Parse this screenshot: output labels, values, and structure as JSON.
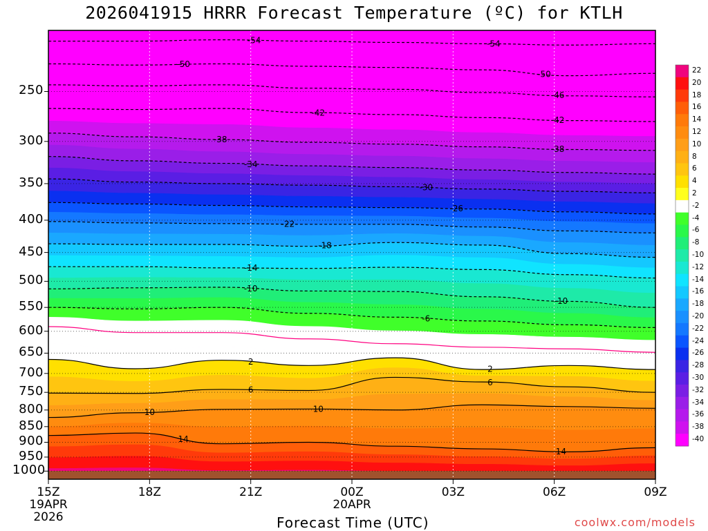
{
  "title": "2026041915 HRRR Forecast Temperature (ºC) for KTLH",
  "xlabel": "Forecast Time (UTC)",
  "credit": "coolwx.com/models",
  "chart_data": {
    "type": "contour-fill",
    "x_axis": {
      "ticks": [
        {
          "hour": 0,
          "label": "15Z",
          "sub": [
            "19APR",
            "2026"
          ]
        },
        {
          "hour": 3,
          "label": "18Z",
          "sub": []
        },
        {
          "hour": 6,
          "label": "21Z",
          "sub": []
        },
        {
          "hour": 9,
          "label": "00Z",
          "sub": [
            "20APR"
          ]
        },
        {
          "hour": 12,
          "label": "03Z",
          "sub": []
        },
        {
          "hour": 15,
          "label": "06Z",
          "sub": []
        },
        {
          "hour": 18,
          "label": "09Z",
          "sub": []
        }
      ],
      "range_hours": [
        0,
        18
      ]
    },
    "y_axis": {
      "scale": "log-pressure",
      "ticks": [
        250,
        300,
        350,
        400,
        450,
        500,
        550,
        600,
        650,
        700,
        750,
        800,
        850,
        900,
        950,
        1000
      ],
      "range_hPa": [
        200,
        1030
      ]
    },
    "colorbar": {
      "levels": [
        22,
        20,
        18,
        16,
        14,
        12,
        10,
        8,
        6,
        4,
        2,
        -2,
        -4,
        -6,
        -8,
        -10,
        -12,
        -14,
        -16,
        -18,
        -20,
        -22,
        -24,
        -26,
        -28,
        -30,
        -32,
        -34,
        -36,
        -38,
        -40
      ],
      "colors": [
        "#f0057e",
        "#ff1010",
        "#ff3a0a",
        "#ff5e08",
        "#ff7a0a",
        "#ff8c0f",
        "#ff9e18",
        "#ffb015",
        "#ffc510",
        "#ffe000",
        "#ffff1e",
        "#ffffff",
        "#40ff2a",
        "#2af84a",
        "#20ee78",
        "#1eeaa8",
        "#19e8d2",
        "#10e4ff",
        "#14c8ff",
        "#1aa8ff",
        "#1a90ff",
        "#1478ff",
        "#0a55ff",
        "#0a30f0",
        "#3a24e4",
        "#5a1ee4",
        "#7a1ee4",
        "#9a1ee8",
        "#b51aec",
        "#cf12ef",
        "#ff00ff"
      ]
    },
    "contour_levels": [
      {
        "temp": -54,
        "pressure": [
          208,
          208,
          207,
          208,
          209,
          210,
          211,
          210
        ],
        "labels": [
          {
            "hour": 6.1,
            "text": "-54"
          },
          {
            "hour": 13.2,
            "text": "-54"
          }
        ]
      },
      {
        "temp": -50,
        "pressure": [
          226,
          227,
          226,
          228,
          229,
          231,
          236,
          234
        ],
        "labels": [
          {
            "hour": 4,
            "text": "-50"
          },
          {
            "hour": 14.7,
            "text": "-50"
          }
        ]
      },
      {
        "temp": -46,
        "pressure": [
          244,
          245,
          244,
          247,
          248,
          251,
          254,
          255
        ],
        "labels": [
          {
            "hour": 15.1,
            "text": "-46"
          }
        ]
      },
      {
        "temp": -42,
        "pressure": [
          266,
          267,
          266,
          270,
          272,
          275,
          278,
          279
        ],
        "labels": [
          {
            "hour": 8,
            "text": "-42"
          },
          {
            "hour": 15.1,
            "text": "-42"
          }
        ]
      },
      {
        "temp": -38,
        "pressure": [
          291,
          295,
          298,
          301,
          303,
          306,
          309,
          310
        ],
        "labels": [
          {
            "hour": 5.1,
            "text": "-38"
          },
          {
            "hour": 15.1,
            "text": "-38"
          }
        ]
      },
      {
        "temp": -34,
        "pressure": [
          317,
          322,
          325,
          328,
          330,
          333,
          336,
          338
        ],
        "labels": [
          {
            "hour": 6,
            "text": "-34"
          }
        ]
      },
      {
        "temp": -30,
        "pressure": [
          344,
          348,
          350,
          352,
          354,
          357,
          360,
          362
        ],
        "labels": [
          {
            "hour": 11.2,
            "text": "-30"
          }
        ]
      },
      {
        "temp": -26,
        "pressure": [
          375,
          377,
          379,
          381,
          382,
          384,
          388,
          391
        ],
        "labels": [
          {
            "hour": 12.1,
            "text": "-26"
          }
        ]
      },
      {
        "temp": -22,
        "pressure": [
          402,
          404,
          405,
          406,
          406,
          410,
          416,
          419
        ],
        "labels": [
          {
            "hour": 7.1,
            "text": "-22"
          }
        ]
      },
      {
        "temp": -18,
        "pressure": [
          436,
          437,
          437,
          440,
          434,
          438,
          452,
          458
        ],
        "labels": [
          {
            "hour": 8.2,
            "text": "-18"
          }
        ]
      },
      {
        "temp": -14,
        "pressure": [
          474,
          474,
          476,
          477,
          475,
          479,
          488,
          494
        ],
        "labels": [
          {
            "hour": 6,
            "text": "-14"
          }
        ]
      },
      {
        "temp": -10,
        "pressure": [
          514,
          512,
          511,
          518,
          519,
          529,
          538,
          550
        ],
        "labels": [
          {
            "hour": 6,
            "text": "-10"
          },
          {
            "hour": 15.2,
            "text": "-10"
          }
        ]
      },
      {
        "temp": -6,
        "pressure": [
          550,
          553,
          550,
          562,
          570,
          578,
          586,
          592
        ],
        "labels": [
          {
            "hour": 11.2,
            "text": "-6"
          }
        ]
      },
      {
        "temp": -2,
        "pressure": [
          590,
          603,
          603,
          617,
          628,
          636,
          640,
          648
        ],
        "labels": []
      },
      {
        "temp": 2,
        "pressure": [
          665,
          688,
          667,
          680,
          661,
          690,
          680,
          690
        ],
        "labels": [
          {
            "hour": 6,
            "text": "2"
          },
          {
            "hour": 13.1,
            "text": "2"
          }
        ]
      },
      {
        "temp": 6,
        "pressure": [
          752,
          753,
          742,
          745,
          710,
          722,
          735,
          750
        ],
        "labels": [
          {
            "hour": 6,
            "text": "6"
          },
          {
            "hour": 13.1,
            "text": "6"
          }
        ]
      },
      {
        "temp": 10,
        "pressure": [
          822,
          808,
          798,
          797,
          800,
          785,
          790,
          795
        ],
        "labels": [
          {
            "hour": 3,
            "text": "10"
          },
          {
            "hour": 8,
            "text": "10"
          }
        ]
      },
      {
        "temp": 14,
        "pressure": [
          878,
          870,
          905,
          900,
          913,
          922,
          932,
          918
        ],
        "labels": [
          {
            "hour": 4,
            "text": "14"
          },
          {
            "hour": 15.2,
            "text": "14"
          }
        ]
      }
    ]
  }
}
